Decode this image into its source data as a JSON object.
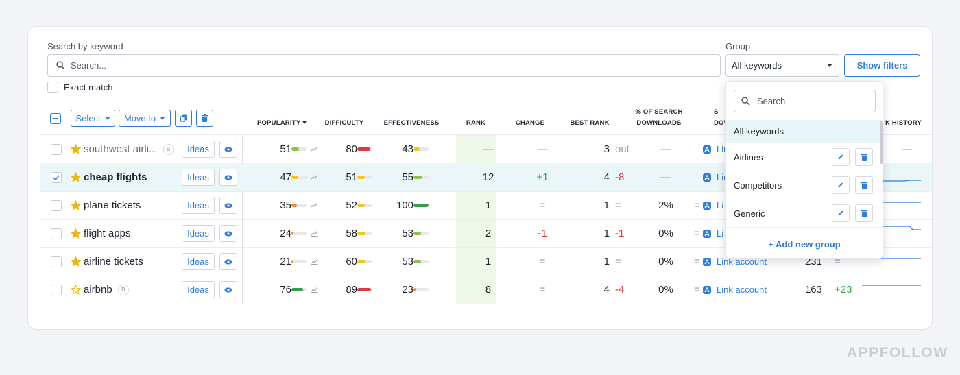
{
  "search": {
    "label": "Search by keyword",
    "placeholder": "Search..."
  },
  "exact_match": "Exact match",
  "group": {
    "label": "Group",
    "value": "All keywords"
  },
  "show_filters": "Show filters",
  "toolbar": {
    "select": "Select",
    "move_to": "Move to"
  },
  "columns": {
    "popularity": "POPULARITY",
    "difficulty": "DIFFICULTY",
    "effectiveness": "EFFECTIVENESS",
    "rank": "RANK",
    "change": "CHANGE",
    "best_rank": "BEST RANK",
    "pct_downloads_1": "% OF SEARCH",
    "pct_downloads_2": "DOWNLOADS",
    "search_dl_1": "S",
    "search_dl_2": "DOW",
    "rank_history": "K HISTORY"
  },
  "ideas_label": "Ideas",
  "rows": [
    {
      "keyword": "southwest airli...",
      "badge": "B",
      "star": "filled",
      "pop": "51",
      "popPct": 0.5,
      "popColor": "#8bc34a",
      "diff": "80",
      "diffPct": 0.85,
      "diffColor": "#e0383e",
      "eff": "43",
      "effPct": 0.4,
      "effColor": "#f5c518",
      "rank": "—",
      "change": "—",
      "best": "3",
      "bestDelta": "out",
      "pct": "—",
      "pctEq": "",
      "link": "Lin",
      "tail": "—"
    },
    {
      "keyword": "cheap flights",
      "badge": "",
      "star": "filled",
      "pop": "47",
      "popPct": 0.45,
      "popColor": "#f5c518",
      "diff": "51",
      "diffPct": 0.5,
      "diffColor": "#f5c518",
      "eff": "55",
      "effPct": 0.55,
      "effColor": "#8bc34a",
      "rank": "12",
      "change": "+1",
      "best": "4",
      "bestDelta": "-8",
      "pct": "—",
      "pctEq": "",
      "link": "Lin",
      "tail": ""
    },
    {
      "keyword": "plane tickets",
      "badge": "",
      "star": "filled",
      "pop": "35",
      "popPct": 0.35,
      "popColor": "#f08a24",
      "diff": "52",
      "diffPct": 0.5,
      "diffColor": "#f5c518",
      "eff": "100",
      "effPct": 1.0,
      "effColor": "#2e9e48",
      "rank": "1",
      "change": "=",
      "best": "1",
      "bestDelta": "=",
      "pct": "2%",
      "pctEq": "=",
      "link": "Li",
      "tail": ""
    },
    {
      "keyword": "flight apps",
      "badge": "",
      "star": "filled",
      "pop": "24",
      "popPct": 0.15,
      "popColor": "#f08a24",
      "diff": "58",
      "diffPct": 0.55,
      "diffColor": "#f5c518",
      "eff": "53",
      "effPct": 0.5,
      "effColor": "#8bc34a",
      "rank": "2",
      "change": "-1",
      "best": "1",
      "bestDelta": "-1",
      "pct": "0%",
      "pctEq": "=",
      "link": "Li",
      "tail": ""
    },
    {
      "keyword": "airline tickets",
      "badge": "",
      "star": "filled",
      "pop": "21",
      "popPct": 0.12,
      "popColor": "#f08a24",
      "diff": "60",
      "diffPct": 0.55,
      "diffColor": "#f5c518",
      "eff": "53",
      "effPct": 0.5,
      "effColor": "#8bc34a",
      "rank": "1",
      "change": "=",
      "best": "1",
      "bestDelta": "=",
      "pct": "0%",
      "pctEq": "=",
      "link": "Link account",
      "extra": "231",
      "extraDelta": "=",
      "tail": ""
    },
    {
      "keyword": "airbnb",
      "badge": "B",
      "star": "outline",
      "pop": "76",
      "popPct": 0.75,
      "popColor": "#2e9e48",
      "diff": "89",
      "diffPct": 0.9,
      "diffColor": "#e0383e",
      "eff": "23",
      "effPct": 0.15,
      "effColor": "#f08a24",
      "rank": "8",
      "change": "=",
      "best": "4",
      "bestDelta": "-4",
      "pct": "0%",
      "pctEq": "=",
      "link": "Link account",
      "extra": "163",
      "extraDelta": "+23",
      "tail": ""
    }
  ],
  "dropdown": {
    "placeholder": "Search",
    "items": [
      "All keywords",
      "Airlines",
      "Competitors",
      "Generic"
    ],
    "add": "+ Add new group"
  },
  "brand": "APPFOLLOW",
  "colors": {
    "accent": "#2d7ee0",
    "selected_row": "#eaf6f7",
    "rank_column": "#eff8e8"
  }
}
